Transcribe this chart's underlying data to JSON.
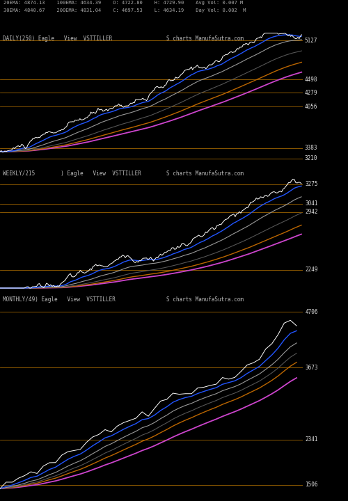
{
  "bg_color": "#000000",
  "fig_width": 5.0,
  "fig_height": 7.2,
  "dpi": 100,
  "header_line1": "20EMA: 4874.13    100EMA: 4634.39    O: 4722.80    H: 4729.90    Avg Vol: 0.007 M",
  "header_line2": "30EMA: 4840.67    200EMA: 4831.04    C: 4697.53    L: 4634.19    Day Vol: 0.002  M",
  "panel1_label": "DAILY(250) Eagle   View  VSTTILLER",
  "panel1_label2": "S charts ManufaSutra.com",
  "panel2_label": "WEEKLY/215        ) Eagle   View  VSTTILLER",
  "panel2_label2": "S charts ManufaSutra.com",
  "panel3_label": "MONTHLY/49) Eagle   View  VSTTILLER",
  "panel3_label2": "S charts ManufaSutra.com",
  "panel1_levels": [
    5127,
    4498,
    4279,
    4056,
    3383,
    3210
  ],
  "panel2_levels": [
    3275,
    3041,
    2942,
    2249
  ],
  "panel3_levels": [
    4706,
    3673,
    2341,
    1506
  ],
  "panel1_ylim": [
    3100,
    5300
  ],
  "panel2_ylim": [
    2000,
    3500
  ],
  "panel3_ylim": [
    1300,
    5100
  ],
  "line_colors": {
    "price": "#ffffff",
    "ema_blue": "#2255ff",
    "ema_lgray": "#999999",
    "ema_dgray": "#555555",
    "ema_magenta": "#cc44cc",
    "ema_orange": "#bb6600",
    "level": "#bb7700"
  }
}
